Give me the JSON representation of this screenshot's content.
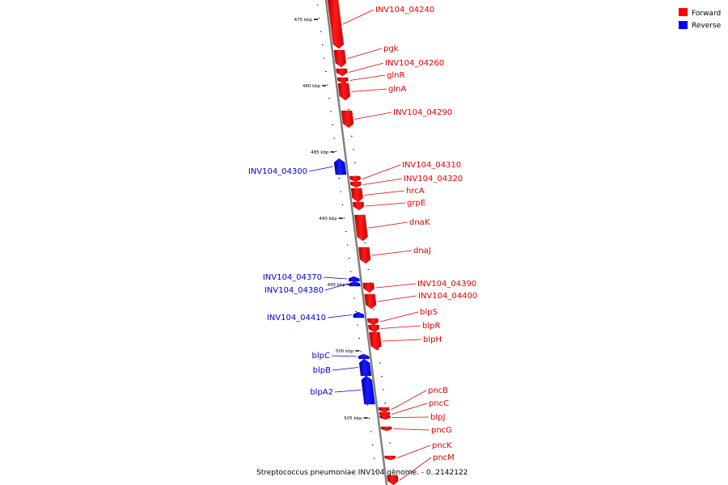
{
  "caption": "Streptococcus pneumoniae INV104 genome. - 0..2142122",
  "legend": {
    "forward_label": "Forward",
    "reverse_label": "Reverse",
    "forward_color": "#ff0000",
    "reverse_color": "#0000ff"
  },
  "colors": {
    "forward_label": "#e00000",
    "reverse_label": "#0000cc",
    "backbone": "#888888"
  },
  "scale_labels": [
    "475 kbp",
    "480 kbp",
    "485 kbp",
    "490 kbp",
    "495 kbp",
    "500 kbp",
    "505 kbp"
  ],
  "genes": [
    {
      "name": "INV104_04240",
      "strand": "forward"
    },
    {
      "name": "pgk",
      "strand": "forward"
    },
    {
      "name": "INV104_04260",
      "strand": "forward"
    },
    {
      "name": "glnR",
      "strand": "forward"
    },
    {
      "name": "glnA",
      "strand": "forward"
    },
    {
      "name": "INV104_04290",
      "strand": "forward"
    },
    {
      "name": "INV104_04300",
      "strand": "reverse"
    },
    {
      "name": "INV104_04310",
      "strand": "forward"
    },
    {
      "name": "INV104_04320",
      "strand": "forward"
    },
    {
      "name": "hrcA",
      "strand": "forward"
    },
    {
      "name": "grpE",
      "strand": "forward"
    },
    {
      "name": "dnaK",
      "strand": "forward"
    },
    {
      "name": "dnaJ",
      "strand": "forward"
    },
    {
      "name": "INV104_04370",
      "strand": "reverse"
    },
    {
      "name": "INV104_04380",
      "strand": "reverse"
    },
    {
      "name": "INV104_04390",
      "strand": "forward"
    },
    {
      "name": "INV104_04400",
      "strand": "forward"
    },
    {
      "name": "INV104_04410",
      "strand": "reverse"
    },
    {
      "name": "blpS",
      "strand": "forward"
    },
    {
      "name": "blpR",
      "strand": "forward"
    },
    {
      "name": "blpH",
      "strand": "forward"
    },
    {
      "name": "blpC",
      "strand": "reverse"
    },
    {
      "name": "blpB",
      "strand": "reverse"
    },
    {
      "name": "blpA2",
      "strand": "reverse"
    },
    {
      "name": "pncB",
      "strand": "forward"
    },
    {
      "name": "pncC",
      "strand": "forward"
    },
    {
      "name": "blpJ",
      "strand": "forward"
    },
    {
      "name": "pncG",
      "strand": "forward"
    },
    {
      "name": "pncK",
      "strand": "forward"
    },
    {
      "name": "pncM",
      "strand": "forward"
    }
  ]
}
